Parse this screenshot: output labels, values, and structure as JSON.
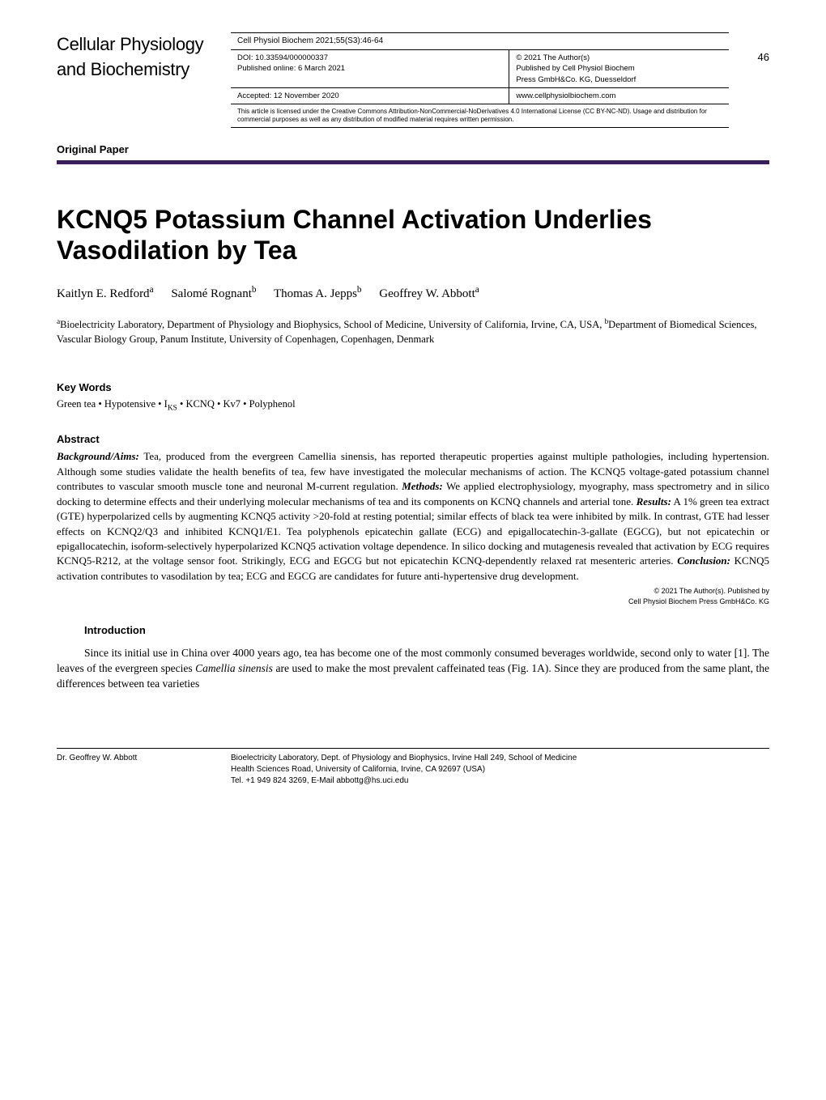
{
  "journal": {
    "line1": "Cellular Physiology",
    "line2": "and Biochemistry"
  },
  "meta": {
    "citation": "Cell Physiol Biochem 2021;55(S3):46-64",
    "doi": "DOI: 10.33594/000000337",
    "published": "Published online: 6 March 2021",
    "accepted": "Accepted: 12 November 2020",
    "copyright": "© 2021 The Author(s)",
    "publisher_line1": "Published by Cell Physiol Biochem",
    "publisher_line2": "Press GmbH&Co. KG, Duesseldorf",
    "publisher_url": "www.cellphysiolbiochem.com",
    "license": "This article is licensed under the Creative Commons Attribution-NonCommercial-NoDerivatives 4.0 International License (CC BY-NC-ND). Usage and distribution for commercial purposes as well as any distribution of modified material requires written permission."
  },
  "page_number": "46",
  "paper_type": "Original Paper",
  "bar_color": "#3a1e5c",
  "title": "KCNQ5 Potassium Channel Activation Underlies Vasodilation by Tea",
  "authors": {
    "a1": "Kaitlyn E. Redford",
    "a1_sup": "a",
    "a2": "Salomé Rognant",
    "a2_sup": "b",
    "a3": "Thomas A. Jepps",
    "a3_sup": "b",
    "a4": "Geoffrey W. Abbott",
    "a4_sup": "a"
  },
  "affiliations": {
    "sup_a": "a",
    "text_a": "Bioelectricity Laboratory, Department of Physiology and Biophysics, School of Medicine, University of California, Irvine, CA, USA, ",
    "sup_b": "b",
    "text_b": "Department of Biomedical Sciences, Vascular Biology Group, Panum Institute, University of Copenhagen, Copenhagen, Denmark"
  },
  "keywords": {
    "header": "Key Words",
    "pre": "Green tea • Hypotensive • I",
    "sub": "KS",
    "post": " • KCNQ • Kv7 • Polyphenol"
  },
  "abstract": {
    "header": "Abstract",
    "bg_label": "Background/Aims:",
    "bg_text": " Tea, produced from the evergreen Camellia sinensis, has reported therapeutic properties against multiple pathologies, including hypertension. Although some studies validate the health benefits of tea, few have investigated the molecular mechanisms of action. The KCNQ5 voltage-gated potassium channel contributes to vascular smooth muscle tone and neuronal M-current regulation. ",
    "methods_label": "Methods:",
    "methods_text": " We applied electrophysiology, myography, mass spectrometry and in silico docking to determine effects and their underlying molecular mechanisms of tea and its components on KCNQ channels and arterial tone. ",
    "results_label": "Results:",
    "results_text": " A 1% green tea extract (GTE) hyperpolarized cells by augmenting KCNQ5 activity >20-fold at resting potential; similar effects of black tea were inhibited by milk. In contrast, GTE had lesser effects on KCNQ2/Q3 and inhibited KCNQ1/E1. Tea polyphenols epicatechin gallate (ECG) and epigallocatechin-3-gallate (EGCG), but not epicatechin or epigallocatechin, isoform-selectively hyperpolarized KCNQ5 activation voltage dependence. In silico docking and mutagenesis revealed that activation by ECG requires KCNQ5-R212, at the voltage sensor foot. Strikingly, ECG and EGCG but not epicatechin KCNQ-dependently relaxed rat mesenteric arteries. ",
    "conclusion_label": "Conclusion:",
    "conclusion_text": " KCNQ5 activation contributes to vasodilation by tea; ECG and EGCG are candidates for future anti-hypertensive drug development."
  },
  "abstract_copyright": {
    "line1": "© 2021 The Author(s). Published by",
    "line2": "Cell Physiol Biochem Press GmbH&Co. KG"
  },
  "introduction": {
    "header": "Introduction",
    "p1_a": "Since its initial use in China over 4000 years ago, tea has become one of the most commonly consumed beverages worldwide, second only to water [1]. The leaves of the evergreen species ",
    "p1_em": "Camellia sinensis",
    "p1_b": " are used to make the most prevalent caffeinated teas (Fig. 1A). Since they are produced from the same plant, the differences between tea varieties"
  },
  "footer": {
    "left": "Dr. Geoffrey W. Abbott",
    "r1": "Bioelectricity Laboratory, Dept. of Physiology and Biophysics, Irvine Hall 249, School of Medicine",
    "r2": "Health Sciences Road, University of California, Irvine, CA 92697 (USA)",
    "r3": "Tel. +1 949 824 3269, E-Mail abbottg@hs.uci.edu"
  }
}
